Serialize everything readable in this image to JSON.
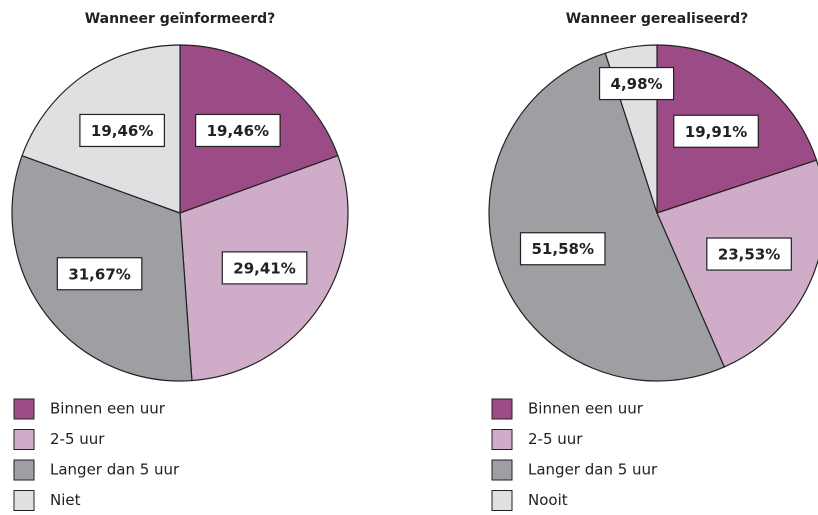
{
  "chart_data": [
    {
      "type": "pie",
      "title": "Wanneer geïnformeerd?",
      "categories": [
        "Binnen een uur",
        "2-5 uur",
        "Langer dan 5 uur",
        "Niet"
      ],
      "values": [
        19.46,
        29.41,
        31.67,
        19.46
      ],
      "value_labels": [
        "19,46%",
        "29,41%",
        "31,67%",
        "19,46%"
      ],
      "colors": [
        "#9b4c87",
        "#cfadc8",
        "#9d9fa3",
        "#dfe0e2"
      ]
    },
    {
      "type": "pie",
      "title": "Wanneer gerealiseerd?",
      "categories": [
        "Binnen een uur",
        "2-5 uur",
        "Langer dan 5 uur",
        "Nooit"
      ],
      "values": [
        19.91,
        23.53,
        51.58,
        4.98
      ],
      "value_labels": [
        "19,91%",
        "23,53%",
        "51,58%",
        "4,98%"
      ],
      "colors": [
        "#9b4c87",
        "#cfadc8",
        "#9d9fa3",
        "#dfe0e2"
      ]
    }
  ]
}
